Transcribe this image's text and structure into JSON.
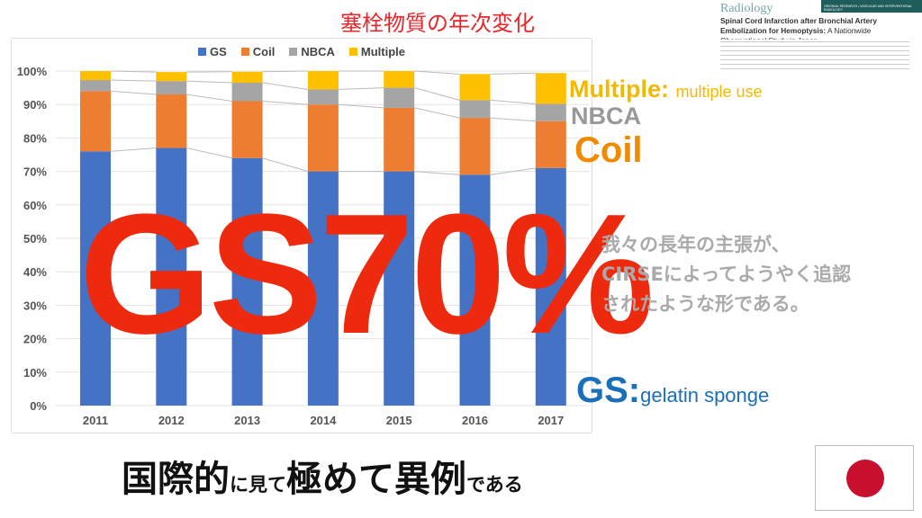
{
  "slide": {
    "title": "塞栓物質の年次変化",
    "big_text": "GS70%",
    "claim_lines": [
      "我々の長年の主張が、",
      "CIRSEによってようやく追認",
      "されたような形である。"
    ],
    "bottom": [
      "国際的",
      "に見て",
      "極めて異例",
      "である"
    ]
  },
  "labels": {
    "multiple": "Multiple:",
    "multiple_desc": "multiple use",
    "nbca": "NBCA",
    "coil": "Coil",
    "gs": "GS:",
    "gs_desc": "gelatin sponge"
  },
  "paper": {
    "journal": "Radiology",
    "header": "ORIGINAL RESEARCH • VASCULAR AND INTERVENTIONAL RADIOLOGY",
    "title_bold": "Spinal Cord Infarction after Bronchial Artery Embolization for Hemoptysis:",
    "title_rest": " A Nationwide Observational Study in Japan"
  },
  "chart_data": {
    "type": "bar",
    "stacked": true,
    "categories": [
      "2011",
      "2012",
      "2013",
      "2014",
      "2015",
      "2016",
      "2017"
    ],
    "series": [
      {
        "name": "GS",
        "color": "#4472c4",
        "values": [
          76,
          77,
          74,
          70,
          70,
          69,
          71
        ]
      },
      {
        "name": "Coil",
        "color": "#ed7d31",
        "values": [
          18,
          16,
          17,
          20,
          19,
          17,
          14
        ]
      },
      {
        "name": "NBCA",
        "color": "#a5a5a5",
        "values": [
          3.3,
          4,
          5.5,
          4.5,
          6,
          5.3,
          5.2
        ]
      },
      {
        "name": "Multiple",
        "color": "#ffc000",
        "values": [
          2.7,
          2.7,
          3.3,
          5.5,
          5,
          7.8,
          9.2
        ]
      }
    ],
    "ylim": [
      0,
      100
    ],
    "yticks": [
      "0%",
      "10%",
      "20%",
      "30%",
      "40%",
      "50%",
      "60%",
      "70%",
      "80%",
      "90%",
      "100%"
    ],
    "legend": "top",
    "grid": true
  }
}
